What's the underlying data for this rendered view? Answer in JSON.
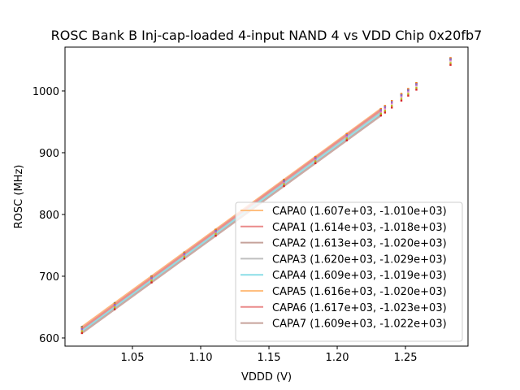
{
  "chart_data": {
    "type": "line",
    "title": "ROSC Bank B Inj-cap-loaded 4-input NAND 4 vs VDD Chip 0x20fb7",
    "xlabel": "VDDD (V)",
    "ylabel": "ROSC (MHz)",
    "xlim": [
      1.0006,
      1.2958
    ],
    "ylim": [
      586.8,
      1071
    ],
    "xticks": [
      "1.05",
      "1.10",
      "1.15",
      "1.20",
      "1.25"
    ],
    "xtick_values": [
      1.05,
      1.1,
      1.15,
      1.2,
      1.25
    ],
    "yticks": [
      "600",
      "700",
      "800",
      "900",
      "1000"
    ],
    "ytick_values": [
      600,
      700,
      800,
      900,
      1000
    ],
    "fit_range": [
      1.013,
      1.232
    ],
    "measured_x": [
      1.013,
      1.037,
      1.064,
      1.088,
      1.111,
      1.161,
      1.184,
      1.207,
      1.232,
      1.235,
      1.24,
      1.247,
      1.252,
      1.258,
      1.283
    ],
    "marker_colors": [
      "#1f77b4",
      "#2ca02c",
      "#17becf",
      "#e377c2",
      "#bcbd22",
      "#ff7f0e",
      "#9467bd",
      "#d62728"
    ],
    "legend_position": "lower-right",
    "series": [
      {
        "name": "CAPA0 (1.607e+03, -1.010e+03)",
        "slope": 1607,
        "intercept": -1010,
        "color": "#ffbf80"
      },
      {
        "name": "CAPA1 (1.614e+03, -1.018e+03)",
        "slope": 1614,
        "intercept": -1018,
        "color": "#ea8a8a"
      },
      {
        "name": "CAPA2 (1.613e+03, -1.020e+03)",
        "slope": 1613,
        "intercept": -1020,
        "color": "#c6a29b"
      },
      {
        "name": "CAPA3 (1.620e+03, -1.029e+03)",
        "slope": 1620,
        "intercept": -1029,
        "color": "#bfbfbf"
      },
      {
        "name": "CAPA4 (1.609e+03, -1.019e+03)",
        "slope": 1609,
        "intercept": -1019,
        "color": "#8bdee7"
      },
      {
        "name": "CAPA5 (1.616e+03, -1.020e+03)",
        "slope": 1616,
        "intercept": -1020,
        "color": "#ffbf80"
      },
      {
        "name": "CAPA6 (1.617e+03, -1.023e+03)",
        "slope": 1617,
        "intercept": -1023,
        "color": "#ea8a8a"
      },
      {
        "name": "CAPA7 (1.609e+03, -1.022e+03)",
        "slope": 1609,
        "intercept": -1022,
        "color": "#c6a29b"
      }
    ]
  }
}
